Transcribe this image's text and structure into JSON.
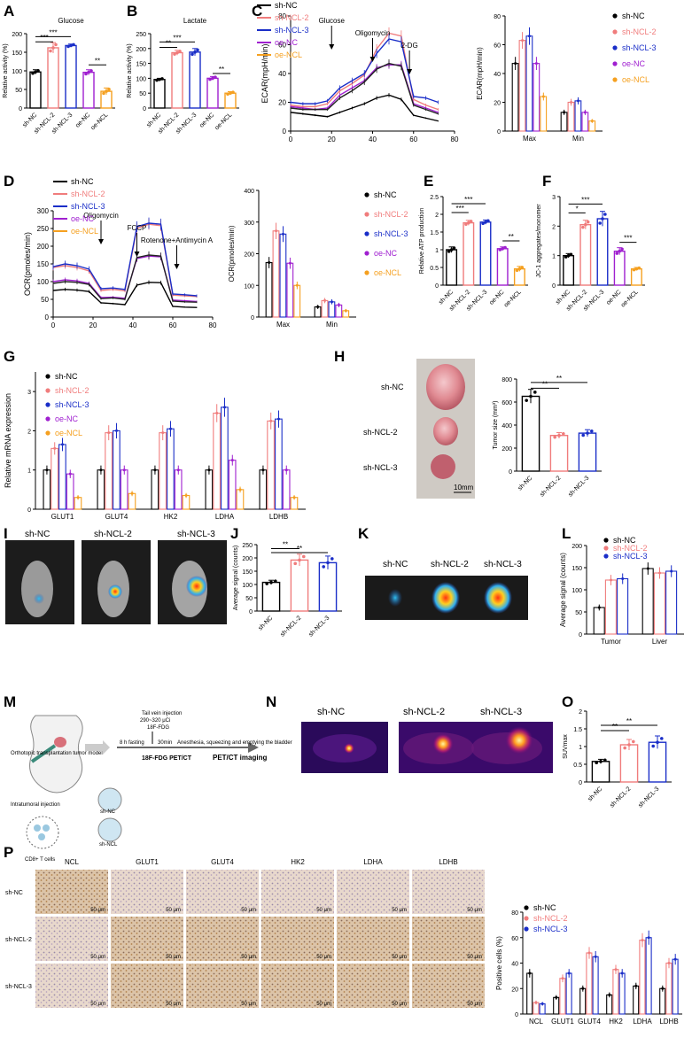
{
  "colors": {
    "sh-NC": "#000000",
    "sh-NCL-2": "#f07c7c",
    "sh-NCL-3": "#1a2ec8",
    "oe-NC": "#a020d0",
    "oe-NCL": "#f5a020",
    "heat": [
      "#0a0a3a",
      "#5a0a7a",
      "#c02070",
      "#f26020",
      "#ffe060"
    ]
  },
  "panel_labels": [
    "A",
    "B",
    "C",
    "D",
    "E",
    "F",
    "G",
    "H",
    "I",
    "J",
    "K",
    "L",
    "M",
    "N",
    "O",
    "P"
  ],
  "chart_data": [
    {
      "id": "A",
      "type": "bar",
      "title": "Glucose",
      "ylabel": "Relative activity (%)",
      "ylim": [
        0,
        200
      ],
      "yticks": [
        0,
        50,
        100,
        150,
        200
      ],
      "categories": [
        "sh-NC",
        "sh-NCL-2",
        "sh-NCL-3",
        "oe-NC",
        "oe-NCL"
      ],
      "values": [
        97,
        162,
        168,
        96,
        45
      ],
      "errors": [
        6,
        14,
        4,
        7,
        9
      ],
      "colors": [
        "#000000",
        "#f07c7c",
        "#1a2ec8",
        "#a020d0",
        "#f5a020"
      ],
      "sig": [
        {
          "a": 0,
          "b": 1,
          "label": "***",
          "y": 178
        },
        {
          "a": 0,
          "b": 2,
          "label": "***",
          "y": 192
        },
        {
          "a": 3,
          "b": 4,
          "label": "**",
          "y": 116
        }
      ]
    },
    {
      "id": "B",
      "type": "bar",
      "title": "Lactate",
      "ylabel": "Relative activity (%)",
      "ylim": [
        0,
        250
      ],
      "yticks": [
        0,
        50,
        100,
        150,
        200,
        250
      ],
      "categories": [
        "sh-NC",
        "sh-NCL-2",
        "sh-NCL-3",
        "oe-NC",
        "oe-NCL"
      ],
      "values": [
        96,
        186,
        188,
        100,
        50
      ],
      "errors": [
        4,
        8,
        12,
        6,
        5
      ],
      "colors": [
        "#000000",
        "#f07c7c",
        "#1a2ec8",
        "#a020d0",
        "#f5a020"
      ],
      "sig": [
        {
          "a": 0,
          "b": 1,
          "label": "**",
          "y": 204
        },
        {
          "a": 0,
          "b": 2,
          "label": "***",
          "y": 222
        },
        {
          "a": 3,
          "b": 4,
          "label": "**",
          "y": 116
        }
      ]
    },
    {
      "id": "C1",
      "type": "line",
      "ylabel": "ECAR(mpH/min)",
      "xlim": [
        0,
        80
      ],
      "ylim": [
        0,
        80
      ],
      "xticks": [
        0,
        20,
        40,
        60,
        80
      ],
      "yticks": [
        0,
        20,
        40,
        60,
        80
      ],
      "x": [
        0,
        6,
        12,
        18,
        24,
        30,
        36,
        42,
        48,
        54,
        60,
        66,
        72
      ],
      "series": [
        {
          "name": "sh-NC",
          "color": "#000000",
          "values": [
            13,
            12,
            11,
            10,
            13,
            16,
            19,
            23,
            25,
            22,
            11,
            9,
            7
          ]
        },
        {
          "name": "sh-NCL-2",
          "color": "#f07c7c",
          "values": [
            18,
            17,
            17,
            19,
            28,
            33,
            39,
            57,
            68,
            66,
            22,
            18,
            15
          ]
        },
        {
          "name": "sh-NCL-3",
          "color": "#1a2ec8",
          "values": [
            20,
            19,
            19,
            21,
            30,
            35,
            40,
            54,
            64,
            62,
            24,
            23,
            20
          ]
        },
        {
          "name": "oe-NC",
          "color": "#a020d0",
          "values": [
            17,
            16,
            15,
            16,
            25,
            30,
            35,
            44,
            46,
            46,
            19,
            16,
            13
          ]
        },
        {
          "name": "oe-NCL",
          "color": "#222222",
          "values": [
            16,
            15,
            15,
            15,
            23,
            28,
            34,
            43,
            47,
            45,
            18,
            15,
            12
          ]
        }
      ],
      "annotations": [
        {
          "text": "Glucose",
          "x": 20
        },
        {
          "text": "Oligomycin",
          "x": 40
        },
        {
          "text": "2-DG",
          "x": 58
        }
      ]
    },
    {
      "id": "C2",
      "type": "bar",
      "ylabel": "ECAR(mpH/min)",
      "ylim": [
        0,
        80
      ],
      "yticks": [
        0,
        20,
        40,
        60,
        80
      ],
      "categories": [
        "Max",
        "Min"
      ],
      "series": [
        {
          "name": "sh-NC",
          "color": "#000000",
          "values": [
            47,
            13
          ]
        },
        {
          "name": "sh-NCL-2",
          "color": "#f07c7c",
          "values": [
            63,
            20
          ]
        },
        {
          "name": "sh-NCL-3",
          "color": "#1a2ec8",
          "values": [
            66,
            21
          ]
        },
        {
          "name": "oe-NC",
          "color": "#a020d0",
          "values": [
            47,
            13
          ]
        },
        {
          "name": "oe-NCL",
          "color": "#f5a020",
          "values": [
            24,
            7
          ]
        }
      ],
      "sig_labels": [
        "**",
        "**",
        "**",
        "**",
        "**",
        "**"
      ]
    },
    {
      "id": "D1",
      "type": "line",
      "ylabel": "OCR(pmoles/min)",
      "xlim": [
        0,
        80
      ],
      "ylim": [
        0,
        300
      ],
      "xticks": [
        0,
        20,
        40,
        60,
        80
      ],
      "yticks": [
        0,
        50,
        100,
        150,
        200,
        250,
        300
      ],
      "x": [
        0,
        6,
        12,
        18,
        24,
        30,
        36,
        42,
        48,
        54,
        60,
        66,
        72
      ],
      "series": [
        {
          "name": "sh-NC",
          "color": "#000000",
          "values": [
            75,
            78,
            76,
            72,
            40,
            38,
            35,
            90,
            98,
            97,
            30,
            28,
            27
          ]
        },
        {
          "name": "sh-NCL-2",
          "color": "#f07c7c",
          "values": [
            140,
            145,
            140,
            130,
            75,
            78,
            74,
            250,
            262,
            258,
            62,
            60,
            58
          ]
        },
        {
          "name": "sh-NCL-3",
          "color": "#1a2ec8",
          "values": [
            142,
            150,
            145,
            135,
            80,
            82,
            78,
            255,
            265,
            262,
            65,
            63,
            60
          ]
        },
        {
          "name": "oe-NC",
          "color": "#a020d0",
          "values": [
            100,
            105,
            102,
            95,
            55,
            56,
            53,
            165,
            172,
            170,
            48,
            46,
            44
          ]
        },
        {
          "name": "oe-NCL",
          "color": "#222222",
          "values": [
            95,
            100,
            98,
            92,
            52,
            54,
            50,
            168,
            175,
            172,
            45,
            43,
            42
          ]
        }
      ],
      "annotations": [
        {
          "text": "Oligomycin",
          "x": 24
        },
        {
          "text": "FCCP",
          "x": 42
        },
        {
          "text": "Rotenone+Antimycin A",
          "x": 62
        }
      ]
    },
    {
      "id": "D2",
      "type": "bar",
      "ylabel": "OCR(pmoles/min)",
      "ylim": [
        0,
        400
      ],
      "yticks": [
        0,
        100,
        200,
        300,
        400
      ],
      "categories": [
        "Max",
        "Min"
      ],
      "series": [
        {
          "name": "sh-NC",
          "color": "#000000",
          "values": [
            172,
            32
          ]
        },
        {
          "name": "sh-NCL-2",
          "color": "#f07c7c",
          "values": [
            272,
            52
          ]
        },
        {
          "name": "sh-NCL-3",
          "color": "#1a2ec8",
          "values": [
            262,
            48
          ]
        },
        {
          "name": "oe-NC",
          "color": "#a020d0",
          "values": [
            170,
            38
          ]
        },
        {
          "name": "oe-NCL",
          "color": "#f5a020",
          "values": [
            100,
            20
          ]
        }
      ],
      "sig_labels": [
        "**",
        "**",
        "**",
        "**",
        "*",
        "*"
      ]
    },
    {
      "id": "E",
      "type": "bar",
      "ylabel": "Relative ATP production",
      "ylim": [
        0,
        2.5
      ],
      "yticks": [
        0.0,
        0.5,
        1.0,
        1.5,
        2.0,
        2.5
      ],
      "categories": [
        "sh-NC",
        "sh-NCL-2",
        "sh-NCL-3",
        "oe-NC",
        "oe-NCL"
      ],
      "values": [
        1.0,
        1.76,
        1.78,
        1.03,
        0.46
      ],
      "errors": [
        0.08,
        0.07,
        0.06,
        0.05,
        0.07
      ],
      "colors": [
        "#000000",
        "#f07c7c",
        "#1a2ec8",
        "#a020d0",
        "#f5a020"
      ],
      "sig": [
        {
          "a": 0,
          "b": 1,
          "label": "***",
          "y": 2.05
        },
        {
          "a": 0,
          "b": 2,
          "label": "***",
          "y": 2.3
        },
        {
          "a": 3,
          "b": 4,
          "label": "**",
          "y": 1.25
        }
      ]
    },
    {
      "id": "F",
      "type": "bar",
      "ylabel": "JC-1 aggregates/monomer",
      "ylim": [
        0,
        3
      ],
      "yticks": [
        0,
        1,
        2,
        3
      ],
      "categories": [
        "sh-NC",
        "sh-NCL-2",
        "sh-NCL-3",
        "oe-NC",
        "oe-NCL"
      ],
      "values": [
        1.0,
        2.05,
        2.25,
        1.15,
        0.55
      ],
      "errors": [
        0.07,
        0.15,
        0.25,
        0.12,
        0.05
      ],
      "colors": [
        "#000000",
        "#f07c7c",
        "#1a2ec8",
        "#a020d0",
        "#f5a020"
      ],
      "sig": [
        {
          "a": 0,
          "b": 1,
          "label": "*",
          "y": 2.45
        },
        {
          "a": 0,
          "b": 2,
          "label": "***",
          "y": 2.75
        },
        {
          "a": 3,
          "b": 4,
          "label": "***",
          "y": 1.45
        }
      ]
    },
    {
      "id": "G",
      "type": "bar",
      "ylabel": "Relative mRNA expression",
      "ylim": [
        0,
        3.5
      ],
      "yticks": [
        0,
        1,
        2,
        3
      ],
      "categories": [
        "GLUT1",
        "GLUT4",
        "HK2",
        "LDHA",
        "LDHB"
      ],
      "series": [
        {
          "name": "sh-NC",
          "color": "#000000",
          "values": [
            1.0,
            1.0,
            1.0,
            1.0,
            1.0
          ]
        },
        {
          "name": "sh-NCL-2",
          "color": "#f07c7c",
          "values": [
            1.55,
            1.95,
            1.95,
            2.45,
            2.25
          ]
        },
        {
          "name": "sh-NCL-3",
          "color": "#1a2ec8",
          "values": [
            1.65,
            2.0,
            2.05,
            2.6,
            2.3
          ]
        },
        {
          "name": "oe-NC",
          "color": "#a020d0",
          "values": [
            0.9,
            1.0,
            1.0,
            1.25,
            1.0
          ]
        },
        {
          "name": "oe-NCL",
          "color": "#f5a020",
          "values": [
            0.3,
            0.4,
            0.35,
            0.5,
            0.3
          ]
        }
      ]
    },
    {
      "id": "H",
      "type": "bar",
      "ylabel": "Tumor size (mm³)",
      "ylim": [
        0,
        800
      ],
      "yticks": [
        0,
        200,
        400,
        600,
        800
      ],
      "categories": [
        "sh-NC",
        "sh-NCL-2",
        "sh-NCL-3"
      ],
      "values": [
        650,
        310,
        330
      ],
      "errors": [
        60,
        25,
        30
      ],
      "colors": [
        "#000000",
        "#f07c7c",
        "#1a2ec8"
      ],
      "sig": [
        {
          "a": 0,
          "b": 1,
          "label": "**",
          "y": 720
        },
        {
          "a": 0,
          "b": 2,
          "label": "**",
          "y": 770
        }
      ]
    },
    {
      "id": "J",
      "type": "bar",
      "ylabel": "Average signal (counts)",
      "ylim": [
        0,
        250
      ],
      "yticks": [
        0,
        50,
        100,
        150,
        200,
        250
      ],
      "categories": [
        "sh-NC",
        "sh-NCL-2",
        "sh-NCL-3"
      ],
      "values": [
        108,
        192,
        182
      ],
      "errors": [
        8,
        22,
        25
      ],
      "colors": [
        "#000000",
        "#f07c7c",
        "#1a2ec8"
      ],
      "sig": [
        {
          "a": 0,
          "b": 1,
          "label": "**",
          "y": 235
        },
        {
          "a": 0,
          "b": 2,
          "label": "**",
          "y": 220
        }
      ]
    },
    {
      "id": "L",
      "type": "bar",
      "ylabel": "Average signal (counts)",
      "ylim": [
        0,
        200
      ],
      "yticks": [
        0,
        50,
        100,
        150,
        200
      ],
      "categories": [
        "Tumor",
        "Liver"
      ],
      "series": [
        {
          "name": "sh-NC",
          "color": "#000000",
          "values": [
            60,
            148
          ]
        },
        {
          "name": "sh-NCL-2",
          "color": "#f07c7c",
          "values": [
            122,
            138
          ]
        },
        {
          "name": "sh-NCL-3",
          "color": "#1a2ec8",
          "values": [
            125,
            142
          ]
        }
      ],
      "sig_labels": [
        "***",
        "**"
      ]
    },
    {
      "id": "O",
      "type": "bar",
      "ylabel": "SUVmax",
      "ylim": [
        0,
        2.0
      ],
      "yticks": [
        0.0,
        0.5,
        1.0,
        1.5,
        2.0
      ],
      "categories": [
        "sh-NC",
        "sh-NCL-2",
        "sh-NCL-3"
      ],
      "values": [
        0.58,
        1.05,
        1.12
      ],
      "errors": [
        0.06,
        0.15,
        0.18
      ],
      "colors": [
        "#000000",
        "#f07c7c",
        "#1a2ec8"
      ],
      "sig": [
        {
          "a": 0,
          "b": 1,
          "label": "**",
          "y": 1.45
        },
        {
          "a": 0,
          "b": 2,
          "label": "**",
          "y": 1.6
        }
      ]
    },
    {
      "id": "P",
      "type": "bar",
      "ylabel": "Positive cells (%)",
      "ylim": [
        0,
        80
      ],
      "yticks": [
        0,
        20,
        40,
        60,
        80
      ],
      "categories": [
        "NCL",
        "GLUT1",
        "GLUT4",
        "HK2",
        "LDHA",
        "LDHB"
      ],
      "series": [
        {
          "name": "sh-NC",
          "color": "#000000",
          "values": [
            32,
            13,
            20,
            15,
            22,
            20
          ]
        },
        {
          "name": "sh-NCL-2",
          "color": "#f07c7c",
          "values": [
            9,
            28,
            48,
            35,
            58,
            40
          ]
        },
        {
          "name": "sh-NCL-3",
          "color": "#1a2ec8",
          "values": [
            8,
            32,
            45,
            32,
            60,
            43
          ]
        }
      ]
    }
  ],
  "legends": {
    "C": [
      "sh-NC",
      "sh-NCL-2",
      "sh-NCL-3",
      "oe-NC",
      "oe-NCL"
    ],
    "C2": [
      "sh-NC",
      "sh-NCL-2",
      "sh-NCL-3",
      "oe-NC",
      "oe-NCL"
    ],
    "D": [
      "sh-NC",
      "sh-NCL-2",
      "sh-NCL-3",
      "oe-NC",
      "oe-NCL"
    ],
    "D2": [
      "sh-NC",
      "sh-NCL-2",
      "sh-NCL-3",
      "oe-NC",
      "oe-NCL"
    ],
    "G": [
      "sh-NC",
      "sh-NCL-2",
      "sh-NCL-3",
      "oe-NC",
      "oe-NCL"
    ],
    "L": [
      "sh-NC",
      "sh-NCL-2",
      "sh-NCL-3"
    ],
    "P": [
      "sh-NC",
      "sh-NCL-2",
      "sh-NCL-3"
    ]
  },
  "H_labels": [
    "sh-NC",
    "sh-NCL-2",
    "sh-NCL-3"
  ],
  "H_scalebar": "10mm",
  "I_labels": [
    "sh-NC",
    "sh-NCL-2",
    "sh-NCL-3"
  ],
  "K_labels": [
    "sh-NC",
    "sh-NCL-2",
    "sh-NCL-3"
  ],
  "N_labels": [
    "sh-NC",
    "sh-NCL-2",
    "sh-NCL-3"
  ],
  "M": {
    "model": "Orthotopic transplantation tumor model",
    "injection": "Intratumoral injection",
    "cells": "CD8+ T cells",
    "fasting": "8 h fasting",
    "tail": "Tail vein injection",
    "dose": "290~320 μCi",
    "tracer": "18F-FDG",
    "wait": "30min",
    "anesthesia": "Anesthesia, squeezing and emptying the bladder",
    "petct": "18F-FDG PET/CT",
    "imaging": "PET/CT imaging",
    "dish1": "sh-NC",
    "dish2": "sh-NCL"
  },
  "P_headers": [
    "NCL",
    "GLUT1",
    "GLUT4",
    "HK2",
    "LDHA",
    "LDHB"
  ],
  "P_rows": [
    "sh-NC",
    "sh-NCL-2",
    "sh-NCL-3"
  ],
  "P_scale": "50 μm"
}
